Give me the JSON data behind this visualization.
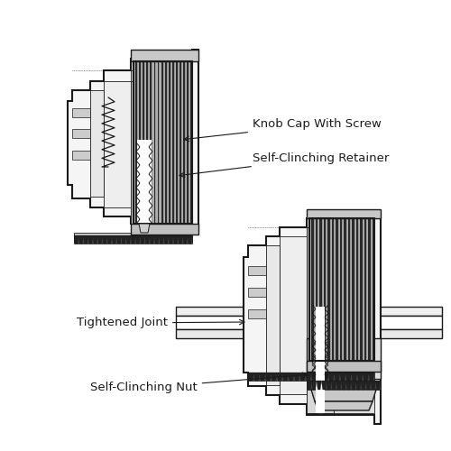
{
  "bg": "#ffffff",
  "lc": "#1a1a1a",
  "labels": {
    "knob_cap": "Knob Cap With Screw",
    "retainer": "Self-Clinching Retainer",
    "joint": "Tightened Joint",
    "nut": "Self-Clinching Nut"
  },
  "fs": 9.5
}
